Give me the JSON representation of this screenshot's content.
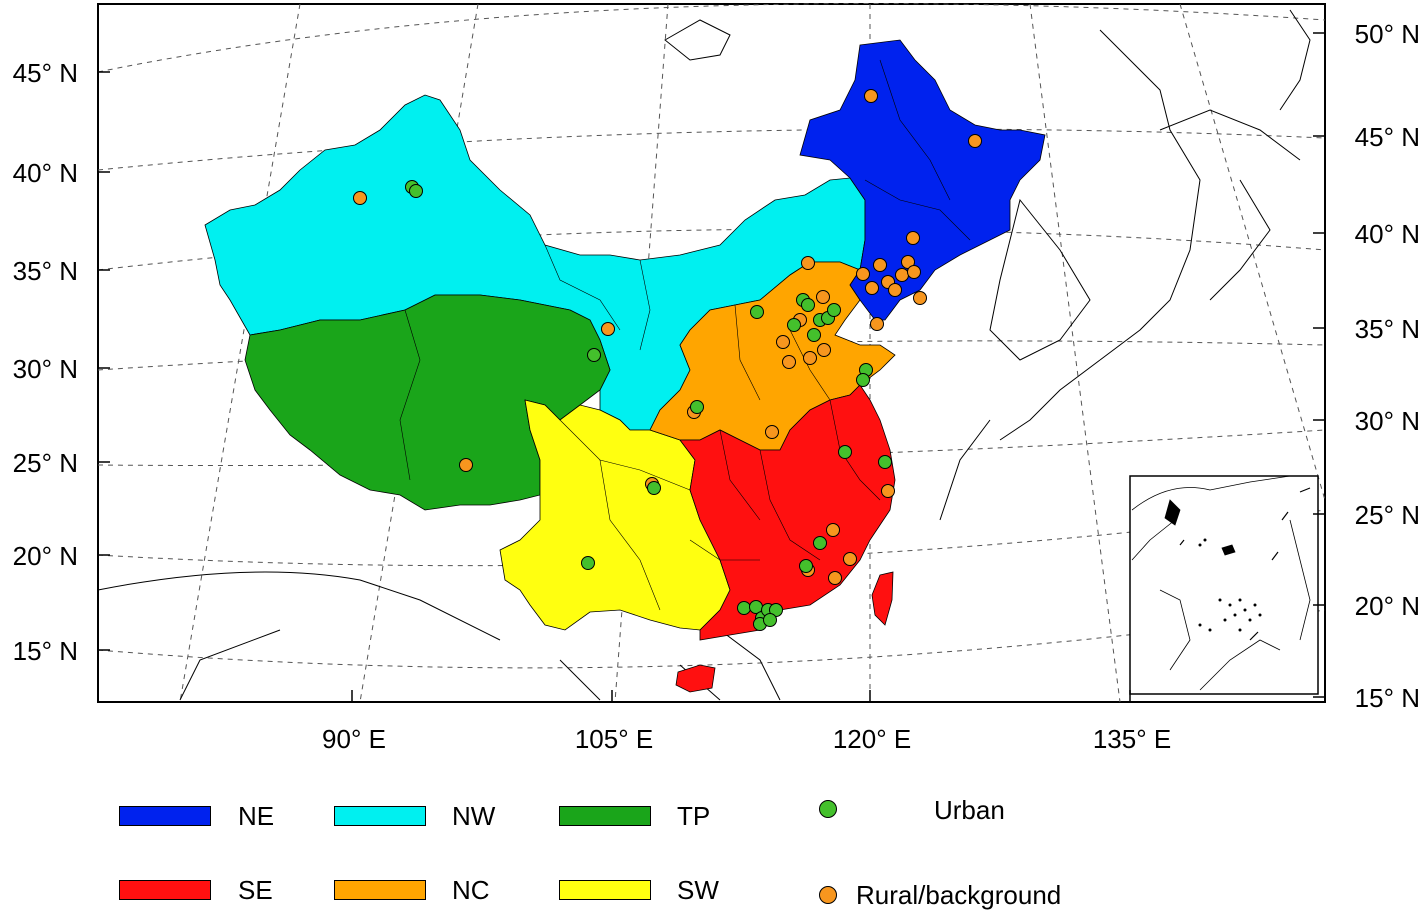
{
  "map": {
    "left_lat_labels": [
      "45° N",
      "40° N",
      "35° N",
      "30° N",
      "25° N",
      "20° N",
      "15° N"
    ],
    "right_lat_labels": [
      "50° N",
      "45° N",
      "40° N",
      "35° N",
      "30° N",
      "25° N",
      "20° N",
      "15° N"
    ],
    "lon_labels": [
      "90° E",
      "105° E",
      "120° E",
      "135° E"
    ],
    "colors": {
      "NE": "#0022ee",
      "NW": "#00f0f0",
      "TP": "#1aa51a",
      "SE": "#ff1010",
      "NC": "#ffa500",
      "SW": "#ffff10",
      "urban": "#44c02c",
      "rural": "#f7961e"
    },
    "sites": {
      "urban_count_hint": "green markers",
      "rural_count_hint": "orange markers"
    }
  },
  "legend": {
    "regions": [
      {
        "code": "NE",
        "label": "NE",
        "color": "#0022ee"
      },
      {
        "code": "NW",
        "label": "NW",
        "color": "#00f0f0"
      },
      {
        "code": "TP",
        "label": "TP",
        "color": "#1aa51a"
      },
      {
        "code": "SE",
        "label": "SE",
        "color": "#ff1010"
      },
      {
        "code": "NC",
        "label": "NC",
        "color": "#ffa500"
      },
      {
        "code": "SW",
        "label": "SW",
        "color": "#ffff10"
      }
    ],
    "site_types": [
      {
        "label": "Urban",
        "color": "#44c02c"
      },
      {
        "label": "Rural/background",
        "color": "#f7961e"
      }
    ]
  }
}
